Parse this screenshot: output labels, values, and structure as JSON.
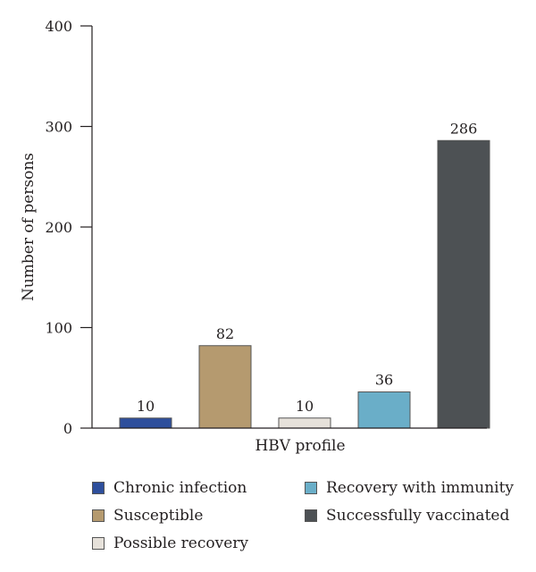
{
  "chart_data": {
    "type": "bar",
    "categories": [
      "Chronic infection",
      "Susceptible",
      "Possible recovery",
      "Recovery with immunity",
      "Successfully vaccinated"
    ],
    "values": [
      10,
      82,
      10,
      36,
      286
    ],
    "data_labels": [
      "10",
      "82",
      "10",
      "36",
      "286"
    ],
    "colors": [
      "#2e4f9c",
      "#b59a6f",
      "#e6e1da",
      "#6aaec8",
      "#4d5154"
    ],
    "xlabel": "HBV profile",
    "ylabel": "Number of persons",
    "ylim": [
      0,
      400
    ],
    "yticks": [
      0,
      100,
      200,
      300,
      400
    ],
    "ytick_labels": [
      "0",
      "100",
      "200",
      "300",
      "400"
    ],
    "grid": false,
    "legend_position": "bottom"
  }
}
